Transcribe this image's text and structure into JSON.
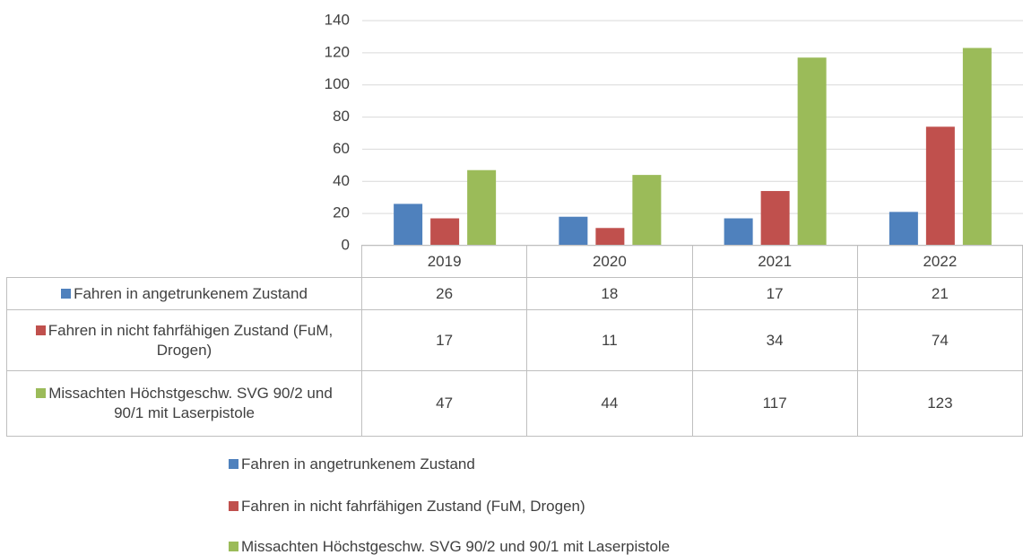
{
  "chart_data": {
    "type": "bar",
    "categories": [
      "2019",
      "2020",
      "2021",
      "2022"
    ],
    "series": [
      {
        "name": "Fahren in angetrunkenem Zustand",
        "color": "#4f81bd",
        "values": [
          26,
          18,
          17,
          21
        ]
      },
      {
        "name": "Fahren in nicht fahrfähigen Zustand (FuM, Drogen)",
        "color": "#c0504d",
        "values": [
          17,
          11,
          34,
          74
        ]
      },
      {
        "name": "Missachten Höchstgeschw. SVG 90/2 und 90/1 mit Laserpistole",
        "color": "#9bbb59",
        "values": [
          47,
          44,
          117,
          123
        ]
      }
    ],
    "ylim": [
      0,
      140
    ],
    "yticks": [
      0,
      20,
      40,
      60,
      80,
      100,
      120,
      140
    ],
    "grid": true
  }
}
